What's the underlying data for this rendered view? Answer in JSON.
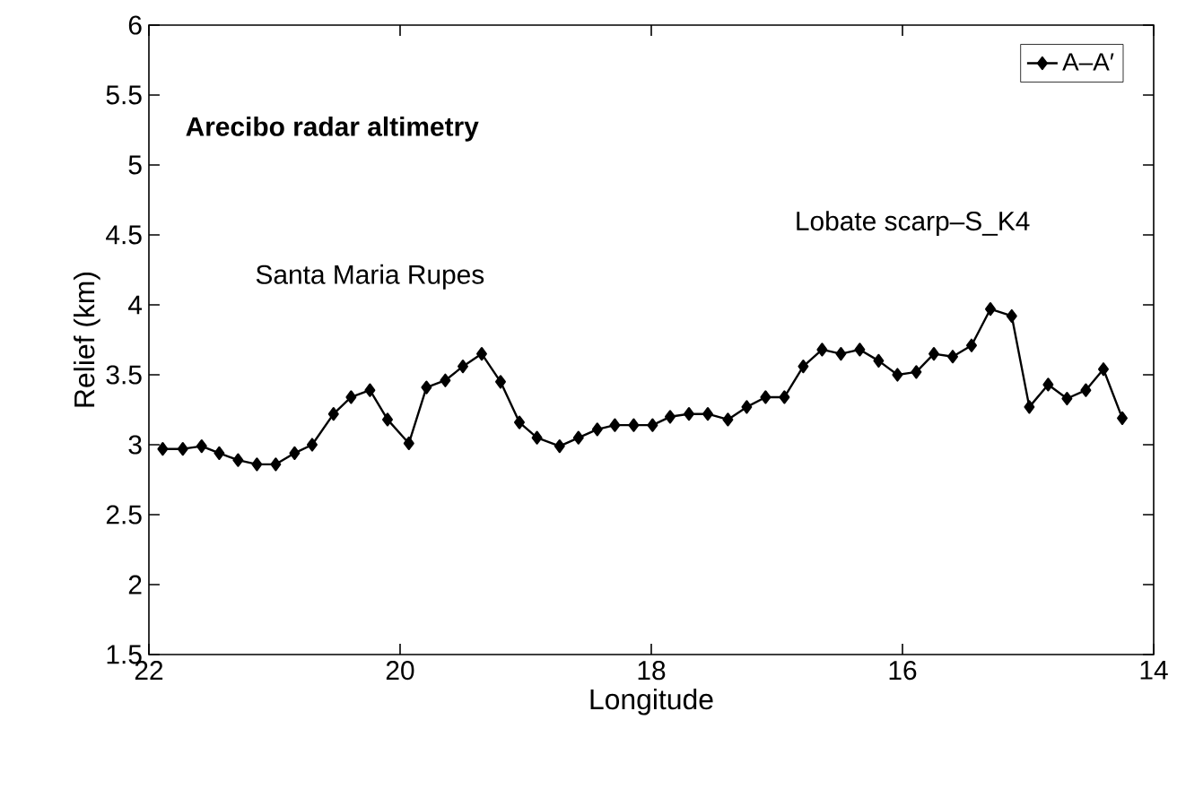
{
  "chart_data": {
    "type": "line",
    "title": "Arecibo radar altimetry",
    "xlabel": "Longitude",
    "ylabel": "Relief (km)",
    "annotations": [
      "Santa Maria Rupes",
      "Lobate scarp–S_K4"
    ],
    "x": [
      21.89,
      21.73,
      21.58,
      21.44,
      21.29,
      21.14,
      20.99,
      20.84,
      20.7,
      20.53,
      20.39,
      20.24,
      20.1,
      19.93,
      19.79,
      19.64,
      19.5,
      19.35,
      19.2,
      19.05,
      18.91,
      18.73,
      18.58,
      18.43,
      18.29,
      18.14,
      17.99,
      17.85,
      17.7,
      17.55,
      17.39,
      17.24,
      17.09,
      16.94,
      16.79,
      16.64,
      16.49,
      16.34,
      16.19,
      16.04,
      15.89,
      15.75,
      15.6,
      15.45,
      15.3,
      15.13,
      14.99,
      14.84,
      14.69,
      14.54,
      14.4,
      14.25
    ],
    "series": [
      {
        "name": "A–A′",
        "color": "#000000",
        "values": [
          2.97,
          2.97,
          2.99,
          2.94,
          2.89,
          2.86,
          2.86,
          2.94,
          3.0,
          3.22,
          3.34,
          3.39,
          3.18,
          3.01,
          3.41,
          3.46,
          3.56,
          3.65,
          3.45,
          3.16,
          3.05,
          2.99,
          3.05,
          3.11,
          3.14,
          3.14,
          3.14,
          3.2,
          3.22,
          3.22,
          3.18,
          3.27,
          3.34,
          3.34,
          3.56,
          3.68,
          3.65,
          3.68,
          3.6,
          3.5,
          3.52,
          3.65,
          3.63,
          3.71,
          3.97,
          3.92,
          3.27,
          3.43,
          3.33,
          3.39,
          3.54,
          3.19
        ]
      }
    ],
    "xlim": [
      22,
      14
    ],
    "ylim": [
      1.5,
      6
    ],
    "xticks": [
      22,
      20,
      18,
      16,
      14
    ],
    "yticks": [
      {
        "value": 1.5,
        "label": "1.5"
      },
      {
        "value": 2,
        "label": "2"
      },
      {
        "value": 2.5,
        "label": "2.5"
      },
      {
        "value": 3,
        "label": "3"
      },
      {
        "value": 3.5,
        "label": "3.5"
      },
      {
        "value": 4,
        "label": "4"
      },
      {
        "value": 4.5,
        "label": "4.5"
      },
      {
        "value": 5,
        "label": "5"
      },
      {
        "value": 5.5,
        "label": "5.5"
      },
      {
        "value": 6,
        "label": "6"
      }
    ],
    "grid": false,
    "legend": "top right",
    "marker": "diamond",
    "line_style": "solid"
  }
}
